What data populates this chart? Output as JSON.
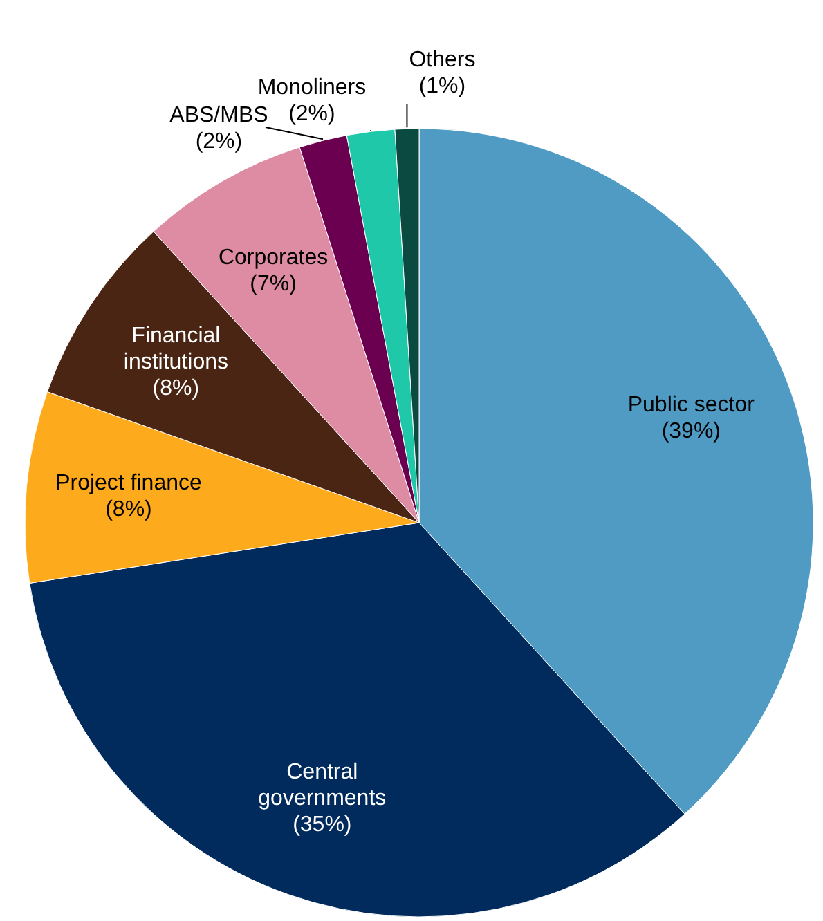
{
  "chart_data": {
    "type": "pie",
    "categories": [
      "Public sector",
      "Central governments",
      "Project finance",
      "Financial institutions",
      "Corporates",
      "ABS/MBS",
      "Monoliners",
      "Others"
    ],
    "values": [
      39,
      35,
      8,
      8,
      7,
      2,
      2,
      1
    ],
    "value_labels": [
      "(39%)",
      "(35%)",
      "(8%)",
      "(8%)",
      "(7%)",
      "(2%)",
      "(2%)",
      "(1%)"
    ],
    "colors": [
      "#4f9bc4",
      "#002b5c",
      "#fdaa1c",
      "#4a2514",
      "#de8ca4",
      "#6b0050",
      "#1ec8a8",
      "#0a4a40"
    ]
  }
}
